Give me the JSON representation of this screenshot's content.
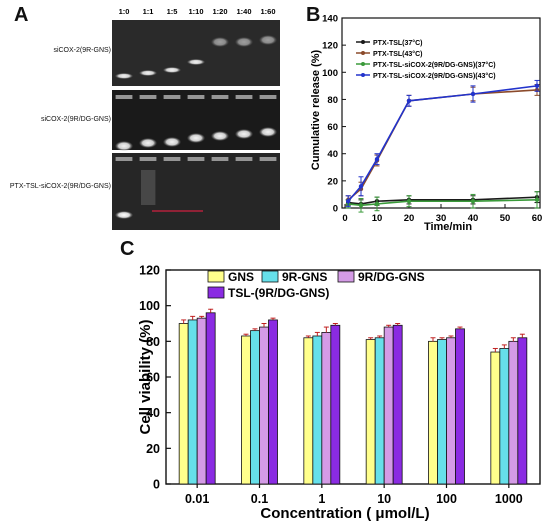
{
  "panels": {
    "a": "A",
    "b": "B",
    "c": "C"
  },
  "gel": {
    "ratios": [
      "1:0",
      "1:1",
      "1:5",
      "1:10",
      "1:20",
      "1:40",
      "1:60"
    ],
    "row_labels": [
      "siCOX-2(9R-GNS)",
      "siCOX-2(9R/DG-GNS)",
      "PTX-TSL-siCOX-2(9R/DG-GNS)"
    ]
  },
  "chart_data": [
    {
      "type": "line",
      "xlabel": "Time/min",
      "ylabel": "Cumulative release (%)",
      "xlim": [
        0,
        60
      ],
      "ylim": [
        0,
        140
      ],
      "xticks": [
        0,
        10,
        20,
        30,
        40,
        50,
        60
      ],
      "yticks": [
        0,
        20,
        40,
        60,
        80,
        100,
        120,
        140
      ],
      "grid": false,
      "legend_position": "top-right",
      "x": [
        1,
        5,
        10,
        20,
        40,
        60
      ],
      "series": [
        {
          "name": "PTX-TSL(37°C)",
          "color": "#1a1a1a",
          "values": [
            4,
            3,
            5,
            6,
            6,
            8
          ],
          "errors": [
            2,
            3,
            3,
            3,
            3,
            4
          ]
        },
        {
          "name": "PTX-TSL(43°C)",
          "color": "#8b4a2b",
          "values": [
            6,
            14,
            35,
            79,
            84,
            87
          ],
          "errors": [
            3,
            5,
            4,
            4,
            5,
            4
          ]
        },
        {
          "name": "PTX-TSL-siCOX-2(9R/DG-GNS)(37°C)",
          "color": "#3a9a3a",
          "values": [
            3,
            2,
            3,
            5,
            5,
            6
          ],
          "errors": [
            3,
            5,
            5,
            4,
            5,
            6
          ]
        },
        {
          "name": "PTX-TSL-siCOX-2(9R/DG-GNS)(43°C)",
          "color": "#2233cc",
          "values": [
            5,
            16,
            36,
            79,
            84,
            90
          ],
          "errors": [
            4,
            7,
            4,
            4,
            6,
            4
          ]
        }
      ]
    },
    {
      "type": "bar",
      "xlabel": "Concentration ( μmol/L)",
      "ylabel": "Cell viability (%)",
      "ylim": [
        0,
        120
      ],
      "yticks": [
        0,
        20,
        40,
        60,
        80,
        100,
        120
      ],
      "grid": false,
      "legend_position": "top-center",
      "categories": [
        "0.01",
        "0.1",
        "1",
        "10",
        "100",
        "1000"
      ],
      "series": [
        {
          "name": "GNS",
          "color": "#ffff8c",
          "values": [
            90,
            83,
            82,
            81,
            80,
            74
          ],
          "errors": [
            2,
            1,
            1,
            1,
            2,
            2
          ]
        },
        {
          "name": "9R-GNS",
          "color": "#66e0ea",
          "values": [
            92,
            86,
            83,
            82,
            81,
            76
          ],
          "errors": [
            2,
            1,
            2,
            1,
            1,
            2
          ]
        },
        {
          "name": "9R/DG-GNS",
          "color": "#d49be6",
          "values": [
            93,
            88,
            85,
            88,
            82,
            80
          ],
          "errors": [
            1,
            2,
            3,
            1,
            1,
            2
          ]
        },
        {
          "name": "TSL-(9R/DG-GNS)",
          "color": "#8a2be2",
          "values": [
            96,
            92,
            89,
            89,
            87,
            82
          ],
          "errors": [
            2,
            1,
            1,
            1,
            1,
            2
          ]
        }
      ]
    }
  ]
}
